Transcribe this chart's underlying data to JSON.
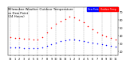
{
  "title": "Milwaukee Weather Outdoor Temperature\nvs Dew Point\n(24 Hours)",
  "temp_color": "#ff0000",
  "dew_color": "#0000ff",
  "legend_temp_label": "Outdoor Temp",
  "legend_dew_label": "Dew Point",
  "background_color": "#ffffff",
  "plot_bg_color": "#ffffff",
  "grid_color": "#b0b0b0",
  "title_fontsize": 2.8,
  "tick_fontsize": 2.5,
  "ylim": [
    15,
    75
  ],
  "yticks": [
    20,
    30,
    40,
    50,
    60,
    70
  ],
  "hours": [
    0,
    1,
    2,
    3,
    4,
    5,
    6,
    7,
    8,
    9,
    10,
    11,
    12,
    13,
    14,
    15,
    16,
    17,
    18,
    19,
    20,
    21,
    22,
    23
  ],
  "hour_labels": [
    "12",
    "1",
    "2",
    "3",
    "4",
    "5",
    "6",
    "7",
    "8",
    "9",
    "10",
    "11",
    "12",
    "1",
    "2",
    "3",
    "4",
    "5",
    "6",
    "7",
    "8",
    "9",
    "10",
    "11"
  ],
  "temp": [
    38,
    37,
    37,
    36,
    36,
    35,
    35,
    38,
    44,
    50,
    55,
    58,
    61,
    63,
    62,
    60,
    57,
    52,
    48,
    44,
    41,
    39,
    37,
    35
  ],
  "dew": [
    25,
    25,
    25,
    24,
    24,
    24,
    24,
    25,
    27,
    29,
    31,
    33,
    34,
    35,
    35,
    34,
    33,
    32,
    31,
    30,
    29,
    28,
    27,
    26
  ]
}
